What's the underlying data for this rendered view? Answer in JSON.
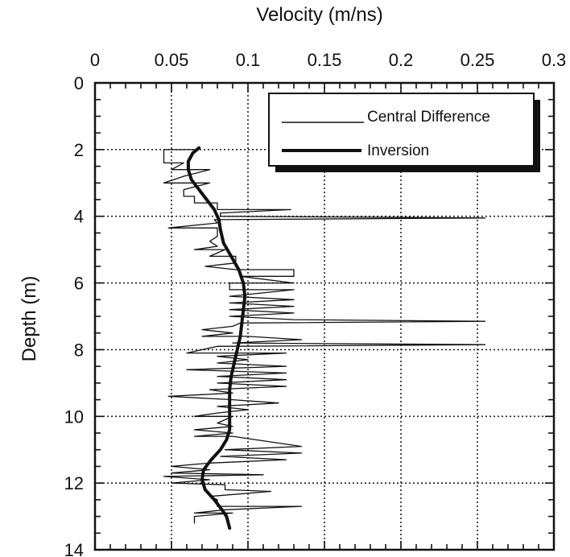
{
  "chart_data": {
    "type": "line",
    "xlabel": "Velocity (m/ns)",
    "ylabel": "Depth (m)",
    "xlim": [
      0,
      0.3
    ],
    "ylim": [
      14,
      0
    ],
    "x_axis_position": "top",
    "y_axis_inverted": true,
    "grid": true,
    "legend_position": "top-right",
    "x_ticks": [
      "0",
      "0.05",
      "0.1",
      "0.15",
      "0.2",
      "0.25",
      "0.3"
    ],
    "y_ticks": [
      "0",
      "2",
      "4",
      "6",
      "8",
      "10",
      "12",
      "14"
    ],
    "x_tick_values": [
      0,
      0.05,
      0.1,
      0.15,
      0.2,
      0.25,
      0.3
    ],
    "y_tick_values": [
      0,
      2,
      4,
      6,
      8,
      10,
      12,
      14
    ],
    "series": [
      {
        "name": "Central Difference",
        "style": "thin",
        "color": "#111111",
        "points": [
          [
            0.065,
            2.0
          ],
          [
            0.045,
            2.0
          ],
          [
            0.045,
            2.2
          ],
          [
            0.045,
            2.4
          ],
          [
            0.058,
            2.4
          ],
          [
            0.05,
            2.6
          ],
          [
            0.075,
            2.6
          ],
          [
            0.058,
            2.8
          ],
          [
            0.045,
            3.0
          ],
          [
            0.075,
            3.0
          ],
          [
            0.058,
            3.2
          ],
          [
            0.058,
            3.4
          ],
          [
            0.065,
            3.4
          ],
          [
            0.065,
            3.6
          ],
          [
            0.08,
            3.6
          ],
          [
            0.08,
            3.8
          ],
          [
            0.128,
            3.8
          ],
          [
            0.082,
            3.9
          ],
          [
            0.082,
            4.0
          ],
          [
            0.255,
            4.05
          ],
          [
            0.078,
            4.1
          ],
          [
            0.08,
            4.2
          ],
          [
            0.048,
            4.35
          ],
          [
            0.08,
            4.35
          ],
          [
            0.08,
            4.6
          ],
          [
            0.075,
            4.75
          ],
          [
            0.08,
            4.9
          ],
          [
            0.065,
            5.0
          ],
          [
            0.085,
            5.0
          ],
          [
            0.075,
            5.2
          ],
          [
            0.092,
            5.2
          ],
          [
            0.092,
            5.4
          ],
          [
            0.072,
            5.5
          ],
          [
            0.092,
            5.6
          ],
          [
            0.13,
            5.6
          ],
          [
            0.13,
            5.8
          ],
          [
            0.095,
            5.8
          ],
          [
            0.13,
            6.0
          ],
          [
            0.088,
            6.0
          ],
          [
            0.088,
            6.2
          ],
          [
            0.13,
            6.2
          ],
          [
            0.088,
            6.4
          ],
          [
            0.13,
            6.5
          ],
          [
            0.088,
            6.6
          ],
          [
            0.13,
            6.7
          ],
          [
            0.088,
            6.8
          ],
          [
            0.13,
            6.9
          ],
          [
            0.088,
            7.0
          ],
          [
            0.13,
            7.1
          ],
          [
            0.255,
            7.15
          ],
          [
            0.095,
            7.2
          ],
          [
            0.09,
            7.3
          ],
          [
            0.07,
            7.4
          ],
          [
            0.09,
            7.5
          ],
          [
            0.07,
            7.6
          ],
          [
            0.1,
            7.6
          ],
          [
            0.135,
            7.7
          ],
          [
            0.09,
            7.8
          ],
          [
            0.255,
            7.85
          ],
          [
            0.08,
            7.9
          ],
          [
            0.06,
            8.1
          ],
          [
            0.125,
            8.1
          ],
          [
            0.08,
            8.2
          ],
          [
            0.1,
            8.3
          ],
          [
            0.08,
            8.4
          ],
          [
            0.125,
            8.5
          ],
          [
            0.06,
            8.6
          ],
          [
            0.125,
            8.7
          ],
          [
            0.08,
            8.8
          ],
          [
            0.125,
            8.9
          ],
          [
            0.08,
            9.0
          ],
          [
            0.125,
            9.1
          ],
          [
            0.075,
            9.2
          ],
          [
            0.09,
            9.3
          ],
          [
            0.048,
            9.4
          ],
          [
            0.09,
            9.5
          ],
          [
            0.12,
            9.6
          ],
          [
            0.08,
            9.7
          ],
          [
            0.1,
            9.8
          ],
          [
            0.08,
            9.9
          ],
          [
            0.065,
            10.0
          ],
          [
            0.09,
            10.0
          ],
          [
            0.08,
            10.2
          ],
          [
            0.09,
            10.3
          ],
          [
            0.065,
            10.4
          ],
          [
            0.09,
            10.5
          ],
          [
            0.065,
            10.6
          ],
          [
            0.09,
            10.6
          ],
          [
            0.135,
            10.9
          ],
          [
            0.085,
            11.0
          ],
          [
            0.135,
            11.1
          ],
          [
            0.082,
            11.2
          ],
          [
            0.125,
            11.3
          ],
          [
            0.075,
            11.4
          ],
          [
            0.05,
            11.5
          ],
          [
            0.075,
            11.6
          ],
          [
            0.05,
            11.7
          ],
          [
            0.11,
            11.75
          ],
          [
            0.045,
            11.8
          ],
          [
            0.075,
            11.9
          ],
          [
            0.05,
            12.0
          ],
          [
            0.085,
            12.05
          ],
          [
            0.085,
            12.2
          ],
          [
            0.115,
            12.25
          ],
          [
            0.075,
            12.4
          ],
          [
            0.08,
            12.5
          ],
          [
            0.08,
            12.7
          ],
          [
            0.135,
            12.7
          ],
          [
            0.085,
            12.8
          ],
          [
            0.065,
            12.9
          ],
          [
            0.09,
            12.9
          ],
          [
            0.065,
            13.0
          ],
          [
            0.065,
            13.2
          ]
        ]
      },
      {
        "name": "Inversion",
        "style": "thick",
        "color": "#111111",
        "points": [
          [
            0.068,
            1.95
          ],
          [
            0.064,
            2.1
          ],
          [
            0.061,
            2.35
          ],
          [
            0.061,
            2.6
          ],
          [
            0.063,
            2.9
          ],
          [
            0.068,
            3.2
          ],
          [
            0.073,
            3.5
          ],
          [
            0.078,
            3.8
          ],
          [
            0.081,
            4.1
          ],
          [
            0.082,
            4.4
          ],
          [
            0.084,
            4.8
          ],
          [
            0.089,
            5.2
          ],
          [
            0.094,
            5.6
          ],
          [
            0.097,
            6.0
          ],
          [
            0.098,
            6.4
          ],
          [
            0.097,
            6.8
          ],
          [
            0.096,
            7.2
          ],
          [
            0.095,
            7.6
          ],
          [
            0.093,
            8.0
          ],
          [
            0.091,
            8.4
          ],
          [
            0.089,
            8.8
          ],
          [
            0.088,
            9.2
          ],
          [
            0.088,
            9.6
          ],
          [
            0.088,
            10.0
          ],
          [
            0.088,
            10.4
          ],
          [
            0.086,
            10.7
          ],
          [
            0.082,
            11.0
          ],
          [
            0.076,
            11.3
          ],
          [
            0.071,
            11.6
          ],
          [
            0.07,
            11.9
          ],
          [
            0.072,
            12.2
          ],
          [
            0.078,
            12.5
          ],
          [
            0.083,
            12.8
          ],
          [
            0.086,
            13.0
          ],
          [
            0.088,
            13.35
          ]
        ]
      }
    ]
  }
}
